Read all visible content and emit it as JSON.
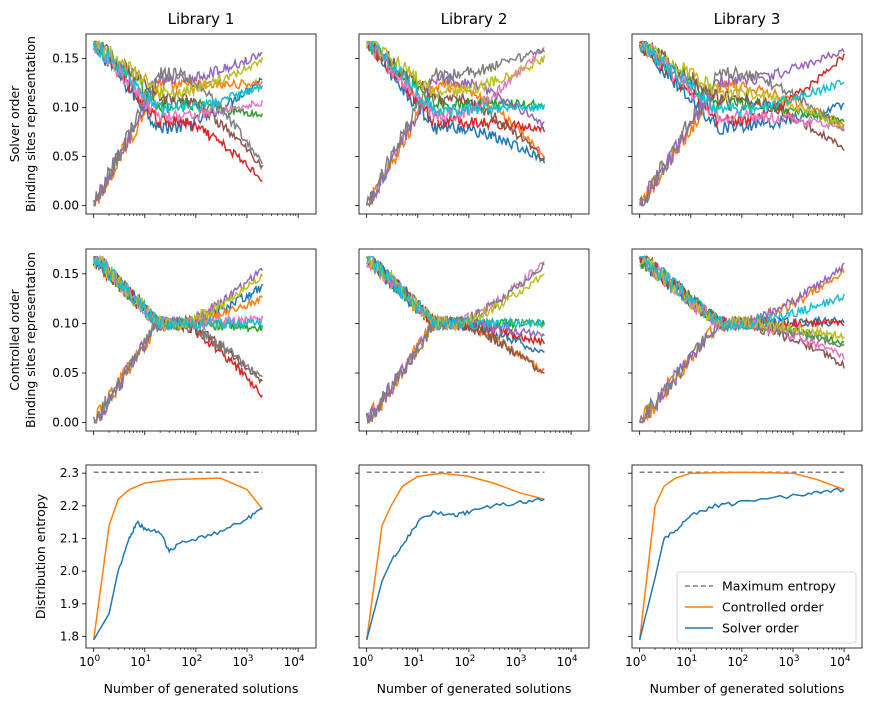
{
  "titles": [
    "Library 1",
    "Library 2",
    "Library 3"
  ],
  "row_labels": [
    [
      "Solver order",
      "Binding sites representation"
    ],
    [
      "Controlled order",
      "Binding sites representation"
    ],
    [
      "Distribution entropy"
    ]
  ],
  "xlabel": "Number of generated solutions",
  "legend": [
    "Maximum entropy",
    "Controlled order",
    "Solver order"
  ],
  "chart_data": {
    "type": "line",
    "xscale": "log",
    "xlim": [
      1,
      10000
    ],
    "xticks": [
      "10^0",
      "10^1",
      "10^2",
      "10^3",
      "10^4"
    ],
    "ylim_representation": [
      0,
      0.167
    ],
    "yticks_representation": [
      "0.00",
      "0.05",
      "0.10",
      "0.15"
    ],
    "yticks_entropy": [
      "1.8",
      "1.9",
      "2.0",
      "2.1",
      "2.2",
      "2.3"
    ],
    "ylim_entropy": [
      1.79,
      2.3
    ],
    "max_x": [
      2000,
      3000,
      10000
    ],
    "max_entropy": 2.303,
    "colors": [
      "#1f77b4",
      "#ff7f0e",
      "#2ca02c",
      "#d62728",
      "#9467bd",
      "#8c564b",
      "#e377c2",
      "#7f7f7f",
      "#bcbd22",
      "#17becf"
    ],
    "solver_final": [
      [
        0.13,
        0.125,
        0.092,
        0.027,
        0.155,
        0.04,
        0.105,
        0.042,
        0.148,
        0.122
      ],
      [
        0.047,
        0.05,
        0.103,
        0.078,
        0.082,
        0.047,
        0.162,
        0.16,
        0.15,
        0.1
      ],
      [
        0.103,
        0.082,
        0.085,
        0.152,
        0.158,
        0.058,
        0.08,
        0.077,
        0.08,
        0.127
      ]
    ],
    "controlled_final": [
      [
        0.137,
        0.125,
        0.095,
        0.027,
        0.155,
        0.042,
        0.105,
        0.043,
        0.148,
        0.1
      ],
      [
        0.07,
        0.05,
        0.1,
        0.08,
        0.087,
        0.048,
        0.163,
        0.16,
        0.15,
        0.1
      ],
      [
        0.102,
        0.153,
        0.08,
        0.1,
        0.158,
        0.058,
        0.067,
        0.077,
        0.087,
        0.127
      ]
    ],
    "entropy_controlled": [
      [
        [
          1,
          1.79
        ],
        [
          2,
          2.14
        ],
        [
          3,
          2.22
        ],
        [
          5,
          2.25
        ],
        [
          10,
          2.27
        ],
        [
          30,
          2.28
        ],
        [
          100,
          2.283
        ],
        [
          300,
          2.285
        ],
        [
          1000,
          2.25
        ],
        [
          2000,
          2.19
        ]
      ],
      [
        [
          1,
          1.79
        ],
        [
          2,
          2.14
        ],
        [
          3,
          2.2
        ],
        [
          5,
          2.26
        ],
        [
          10,
          2.29
        ],
        [
          30,
          2.3
        ],
        [
          100,
          2.29
        ],
        [
          300,
          2.27
        ],
        [
          1000,
          2.24
        ],
        [
          3000,
          2.22
        ]
      ],
      [
        [
          1,
          1.79
        ],
        [
          2,
          2.2
        ],
        [
          3,
          2.26
        ],
        [
          5,
          2.285
        ],
        [
          10,
          2.3
        ],
        [
          100,
          2.303
        ],
        [
          1000,
          2.3
        ],
        [
          3000,
          2.28
        ],
        [
          10000,
          2.25
        ]
      ]
    ],
    "entropy_solver": [
      [
        [
          1,
          1.79
        ],
        [
          2,
          1.87
        ],
        [
          3,
          2.0
        ],
        [
          5,
          2.1
        ],
        [
          7,
          2.15
        ],
        [
          10,
          2.13
        ],
        [
          20,
          2.12
        ],
        [
          30,
          2.06
        ],
        [
          50,
          2.09
        ],
        [
          100,
          2.1
        ],
        [
          300,
          2.12
        ],
        [
          1000,
          2.16
        ],
        [
          2000,
          2.19
        ]
      ],
      [
        [
          1,
          1.79
        ],
        [
          2,
          1.97
        ],
        [
          3,
          2.03
        ],
        [
          5,
          2.08
        ],
        [
          10,
          2.15
        ],
        [
          20,
          2.18
        ],
        [
          50,
          2.17
        ],
        [
          100,
          2.18
        ],
        [
          300,
          2.2
        ],
        [
          1000,
          2.21
        ],
        [
          3000,
          2.22
        ]
      ],
      [
        [
          1,
          1.79
        ],
        [
          2,
          1.98
        ],
        [
          3,
          2.1
        ],
        [
          5,
          2.12
        ],
        [
          10,
          2.17
        ],
        [
          30,
          2.2
        ],
        [
          100,
          2.21
        ],
        [
          1000,
          2.23
        ],
        [
          3000,
          2.24
        ],
        [
          10000,
          2.25
        ]
      ]
    ]
  }
}
